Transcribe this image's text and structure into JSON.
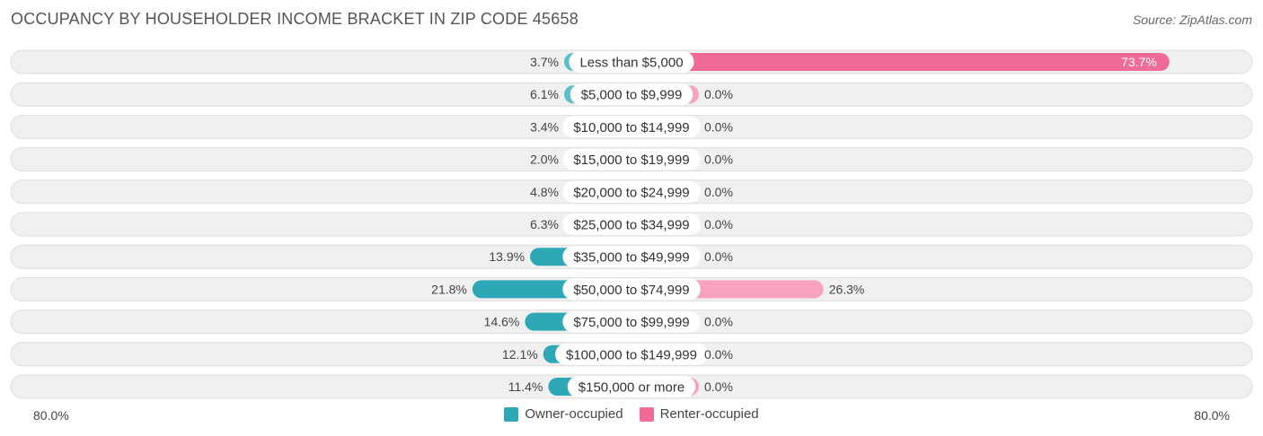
{
  "header": {
    "title": "OCCUPANCY BY HOUSEHOLDER INCOME BRACKET IN ZIP CODE 45658",
    "source": "Source: ZipAtlas.com"
  },
  "axis": {
    "left_label": "80.0%",
    "right_label": "80.0%"
  },
  "legend": {
    "owner_label": "Owner-occupied",
    "renter_label": "Renter-occupied"
  },
  "colors": {
    "owner": "#5cbfcb",
    "owner_strong": "#2ea8b7",
    "renter": "#f7a3c0",
    "renter_strong": "#f06b97",
    "row_bg": "#f0f0f0",
    "row_border": "#dedede"
  },
  "chart_data": {
    "type": "bar",
    "orientation": "horizontal-diverging",
    "title": "OCCUPANCY BY HOUSEHOLDER INCOME BRACKET IN ZIP CODE 45658",
    "xlim": [
      -80,
      80
    ],
    "categories": [
      "Less than $5,000",
      "$5,000 to $9,999",
      "$10,000 to $14,999",
      "$15,000 to $19,999",
      "$20,000 to $24,999",
      "$25,000 to $34,999",
      "$35,000 to $49,999",
      "$50,000 to $74,999",
      "$75,000 to $99,999",
      "$100,000 to $149,999",
      "$150,000 or more"
    ],
    "series": [
      {
        "name": "Owner-occupied",
        "values": [
          3.7,
          6.1,
          3.4,
          2.0,
          4.8,
          6.3,
          13.9,
          21.8,
          14.6,
          12.1,
          11.4
        ],
        "labels": [
          "3.7%",
          "6.1%",
          "3.4%",
          "2.0%",
          "4.8%",
          "6.3%",
          "13.9%",
          "21.8%",
          "14.6%",
          "12.1%",
          "11.4%"
        ]
      },
      {
        "name": "Renter-occupied",
        "values": [
          73.7,
          0.0,
          0.0,
          0.0,
          0.0,
          0.0,
          0.0,
          26.3,
          0.0,
          0.0,
          0.0
        ],
        "labels": [
          "73.7%",
          "0.0%",
          "0.0%",
          "0.0%",
          "0.0%",
          "0.0%",
          "0.0%",
          "26.3%",
          "0.0%",
          "0.0%",
          "0.0%"
        ]
      }
    ],
    "legend_position": "bottom-center"
  }
}
